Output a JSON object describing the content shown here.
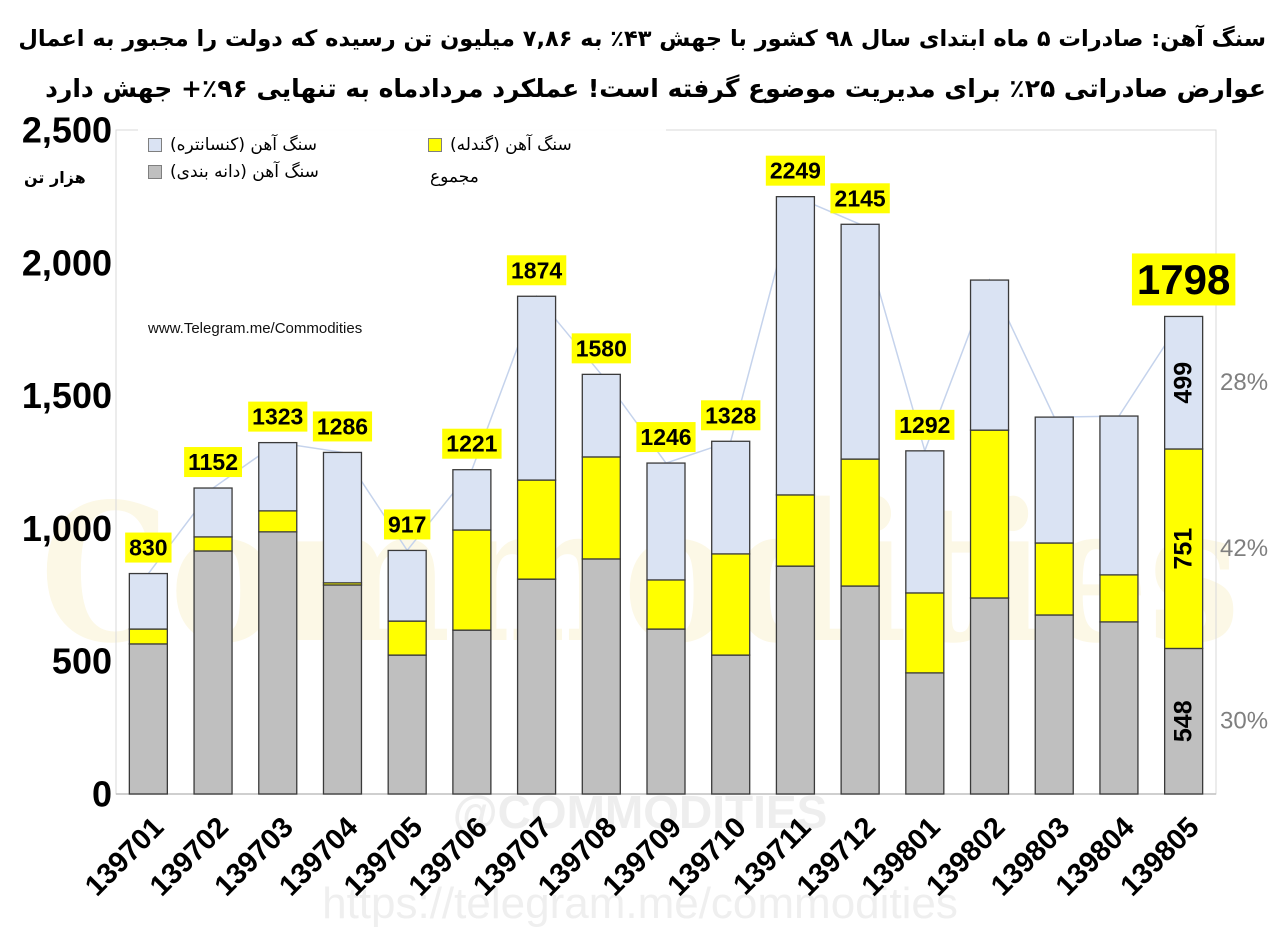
{
  "chart_data": {
    "type": "bar",
    "stacked": true,
    "title_lines": [
      "سنگ آهن: صادرات ۵ ماه ابتدای سال ۹۸ کشور با جهش ۴۳٪ به ۷,۸۶ میلیون تن رسیده که دولت را مجبور به اعمال",
      "عوارض صادراتی ۲۵٪ برای مدیریت موضوع گرفته است! عملکرد مردادماه به تنهایی ۹۶٪+ جهش دارد"
    ],
    "xlabel": "",
    "ylabel": "هزار تن",
    "ylim": [
      0,
      2500
    ],
    "yticks": [
      0,
      500,
      1000,
      1500,
      2000,
      2500
    ],
    "ytick_labels": [
      "0",
      "500",
      "1,000",
      "1,500",
      "2,000",
      "2,500"
    ],
    "grid": false,
    "categories": [
      "139701",
      "139702",
      "139703",
      "139704",
      "139705",
      "139706",
      "139707",
      "139708",
      "139709",
      "139710",
      "139711",
      "139712",
      "139801",
      "139802",
      "139803",
      "139804",
      "139805"
    ],
    "series": [
      {
        "name": "سنگ آهن (دانه بندی)",
        "color": "#bfbfbf",
        "values": [
          565,
          915,
          987,
          787,
          523,
          617,
          809,
          885,
          621,
          523,
          858,
          783,
          456,
          738,
          674,
          648,
          548
        ]
      },
      {
        "name": "سنگ آهن (گندله)",
        "color": "#ffff00",
        "values": [
          56,
          53,
          79,
          8,
          128,
          377,
          373,
          384,
          185,
          381,
          268,
          478,
          301,
          632,
          271,
          177,
          751
        ]
      },
      {
        "name": "سنگ آهن (کنسانتره)",
        "color": "#dae3f3",
        "values": [
          209,
          184,
          257,
          491,
          266,
          227,
          692,
          311,
          440,
          424,
          1123,
          884,
          535,
          565,
          474,
          598,
          499
        ]
      }
    ],
    "total": {
      "name": "مجموع",
      "color": "#c5d3ec",
      "values": [
        830,
        1152,
        1323,
        1286,
        917,
        1221,
        1874,
        1580,
        1246,
        1328,
        2249,
        2145,
        1292,
        1935,
        1419,
        1423,
        1798
      ],
      "labels": [
        "830",
        "1152",
        "1323",
        "1286",
        "917",
        "1221",
        "1874",
        "1580",
        "1246",
        "1328",
        "2249",
        "2145",
        "1292",
        null,
        null,
        null,
        "1798"
      ],
      "label_box_color": "#ffff00"
    },
    "last_bar_labels": [
      "548",
      "751",
      "499"
    ],
    "last_bar_shares": [
      "30%",
      "42%",
      "28%"
    ],
    "share_color": "#7f7f7f",
    "legend": {
      "position": "top-left"
    },
    "annotation": "www.Telegram.me/Commodities"
  },
  "watermarks": {
    "logo": "Commodities",
    "handle": "@COMMODITIES",
    "url": "https://telegram.me/commodities"
  }
}
